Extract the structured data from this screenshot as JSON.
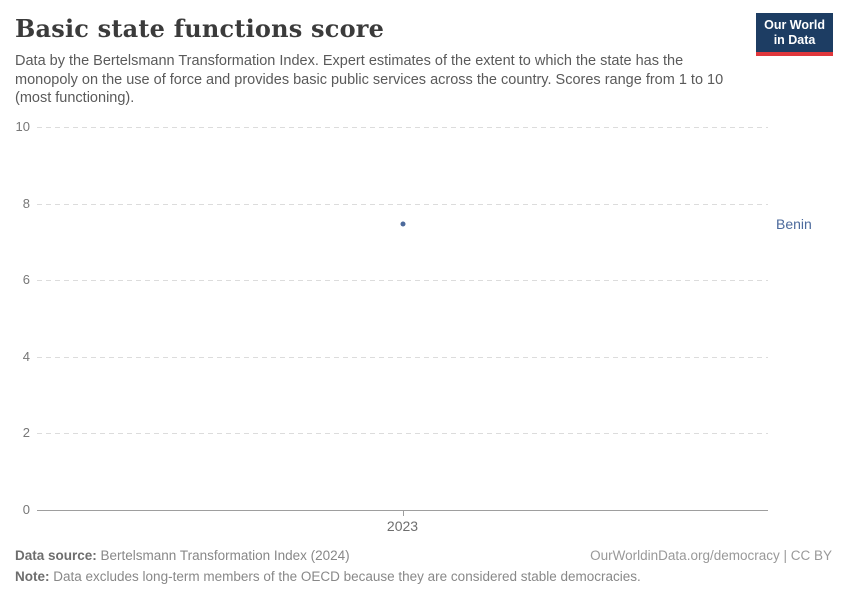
{
  "header": {
    "title": "Basic state functions score",
    "subtitle": "Data by the Bertelsmann Transformation Index. Expert estimates of the extent to which the state has the monopoly on the use of force and provides basic public services across the country. Scores range from 1 to 10 (most functioning).",
    "logo": {
      "line1": "Our World",
      "line2": "in Data",
      "bg_color": "#1d3d63",
      "accent_color": "#e0373c"
    }
  },
  "chart_data": {
    "type": "scatter",
    "x": [
      2023
    ],
    "series": [
      {
        "name": "Benin",
        "values": [
          7.5
        ],
        "color": "#4c6a9c"
      }
    ],
    "title": "Basic state functions score",
    "xlabel": "",
    "ylabel": "",
    "ylim": [
      0,
      10
    ],
    "yticks": [
      0,
      2,
      4,
      6,
      8,
      10
    ],
    "xticks": [
      "2023"
    ],
    "grid": "horizontal-dashed",
    "legend_position": "right-of-point"
  },
  "footer": {
    "source_label": "Data source:",
    "source_text": " Bertelsmann Transformation Index (2024)",
    "credit": "OurWorldinData.org/democracy | CC BY",
    "note_label": "Note:",
    "note_text": " Data excludes long-term members of the OECD because they are considered stable democracies."
  }
}
